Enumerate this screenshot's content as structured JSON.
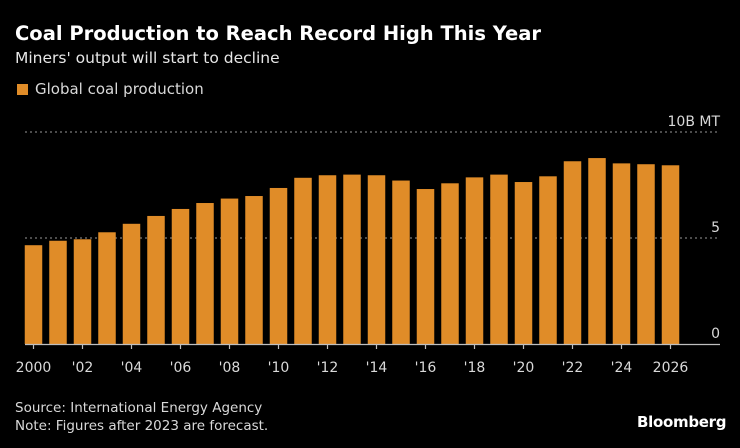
{
  "header": {
    "title": "Coal Production to Reach Record High This Year",
    "subtitle": "Miners' output will start to decline"
  },
  "footer": {
    "source": "Source: International Energy Agency",
    "note": "Note: Figures after 2023 are forecast.",
    "brand": "Bloomberg"
  },
  "colors": {
    "bar": "#E08C28",
    "background": "#000000",
    "gridline": "#7a7a7a",
    "axis": "#bfbfbf"
  },
  "chart_data": {
    "type": "bar",
    "title": "Coal Production to Reach Record High This Year",
    "subtitle": "Miners' output will start to decline",
    "xlabel": "",
    "ylabel": "",
    "y_unit_label": "10B MT",
    "legend": [
      {
        "name": "Global coal production",
        "color": "#E08C28"
      }
    ],
    "legend_position": "top-left",
    "grid": true,
    "ylim": [
      0,
      10
    ],
    "yticks": [
      {
        "value": 0,
        "label": "0"
      },
      {
        "value": 5,
        "label": "5"
      },
      {
        "value": 10,
        "label": "10B MT"
      }
    ],
    "categories": [
      2000,
      2001,
      2002,
      2003,
      2004,
      2005,
      2006,
      2007,
      2008,
      2009,
      2010,
      2011,
      2012,
      2013,
      2014,
      2015,
      2016,
      2017,
      2018,
      2019,
      2020,
      2021,
      2022,
      2023,
      2024,
      2025,
      2026
    ],
    "xticks": [
      {
        "value": 2000,
        "label": "2000"
      },
      {
        "value": 2002,
        "label": "'02"
      },
      {
        "value": 2004,
        "label": "'04"
      },
      {
        "value": 2006,
        "label": "'06"
      },
      {
        "value": 2008,
        "label": "'08"
      },
      {
        "value": 2010,
        "label": "'10"
      },
      {
        "value": 2012,
        "label": "'12"
      },
      {
        "value": 2014,
        "label": "'14"
      },
      {
        "value": 2016,
        "label": "'16"
      },
      {
        "value": 2018,
        "label": "'18"
      },
      {
        "value": 2020,
        "label": "'20"
      },
      {
        "value": 2022,
        "label": "'22"
      },
      {
        "value": 2024,
        "label": "'24"
      },
      {
        "value": 2026,
        "label": "2026"
      }
    ],
    "series": [
      {
        "name": "Global coal production",
        "unit": "B MT",
        "values": [
          4.66,
          4.87,
          4.94,
          5.27,
          5.67,
          6.04,
          6.37,
          6.65,
          6.86,
          6.98,
          7.36,
          7.84,
          7.96,
          7.99,
          7.96,
          7.71,
          7.31,
          7.58,
          7.86,
          7.99,
          7.64,
          7.91,
          8.62,
          8.77,
          8.52,
          8.48,
          8.43
        ]
      }
    ],
    "annotations": [
      "Note: Figures after 2023 are forecast."
    ]
  }
}
